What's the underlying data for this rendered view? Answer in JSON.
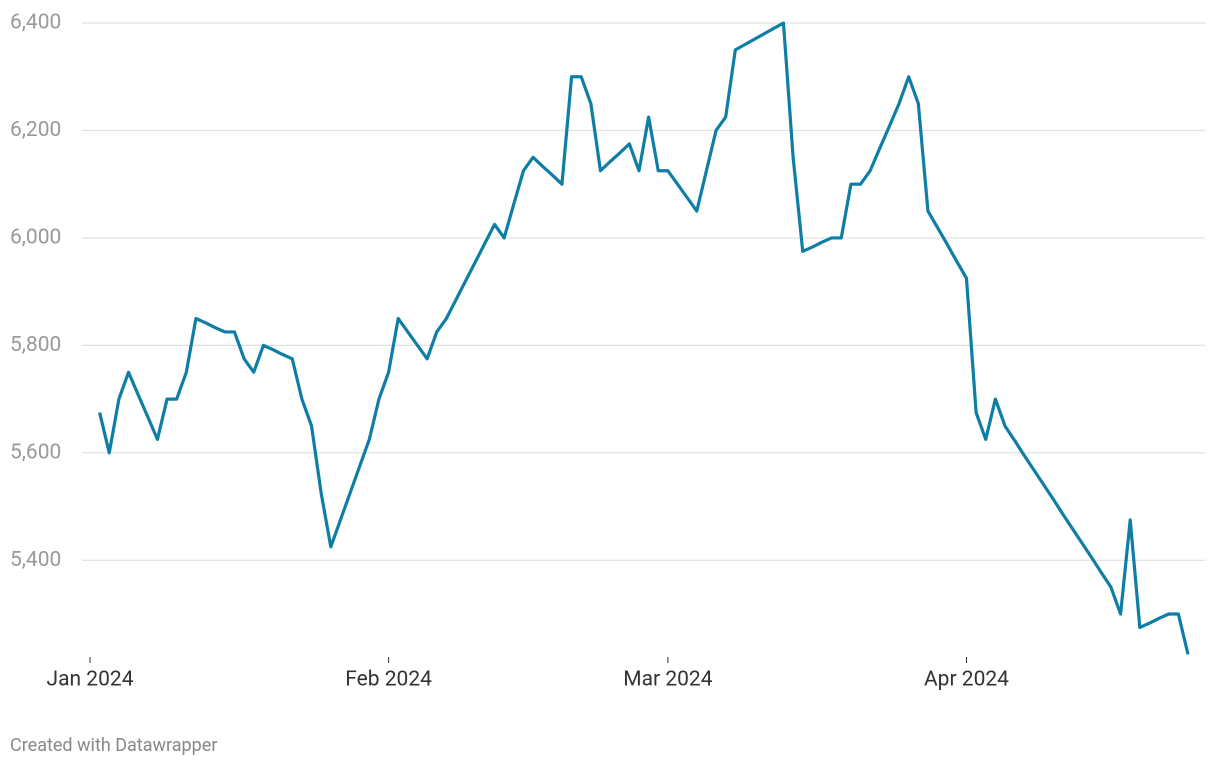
{
  "chart_data": {
    "type": "line",
    "categories": [
      "Jan 2024",
      null,
      null,
      null,
      null,
      null,
      null,
      null,
      null,
      null,
      null,
      null,
      null,
      null,
      null,
      null,
      null,
      null,
      null,
      null,
      null,
      null,
      null,
      null,
      null,
      null,
      null,
      null,
      null,
      null,
      null,
      "Feb 2024",
      null,
      null,
      null,
      null,
      null,
      null,
      null,
      null,
      null,
      null,
      null,
      null,
      null,
      null,
      null,
      null,
      null,
      null,
      null,
      null,
      null,
      null,
      null,
      null,
      null,
      null,
      null,
      null,
      "Mar 2024",
      null,
      null,
      null,
      null,
      null,
      null,
      null,
      null,
      null,
      null,
      null,
      null,
      null,
      null,
      null,
      null,
      null,
      null,
      null,
      null,
      null,
      null,
      null,
      null,
      null,
      null,
      null,
      null,
      null,
      null,
      "Apr 2024",
      null,
      null,
      null,
      null,
      null,
      null,
      null,
      null,
      null,
      null,
      null,
      null,
      null,
      null,
      null,
      null,
      null,
      null,
      null,
      null,
      null,
      null,
      null
    ],
    "series": [
      {
        "color": "#0f7ea6",
        "values": [
          null,
          5675,
          5600,
          5700,
          5750,
          5708,
          5667,
          5625,
          5700,
          5700,
          5750,
          5850,
          5842,
          5833,
          5825,
          5825,
          5775,
          5750,
          5800,
          5792,
          5783,
          5775,
          5700,
          5650,
          5525,
          5425,
          5475,
          5525,
          5575,
          5625,
          5700,
          5750,
          5850,
          5825,
          5800,
          5775,
          5825,
          5850,
          5885,
          5920,
          5955,
          5990,
          6025,
          6000,
          6063,
          6125,
          6150,
          6133,
          6117,
          6100,
          6300,
          6300,
          6250,
          6125,
          6142,
          6158,
          6175,
          6125,
          6225,
          6125,
          6125,
          6100,
          6075,
          6050,
          6125,
          6200,
          6225,
          6350,
          6360,
          6370,
          6380,
          6390,
          6400,
          6150,
          5975,
          5983,
          5992,
          6000,
          6000,
          6100,
          6100,
          6125,
          6167,
          6208,
          6250,
          6300,
          6250,
          6050,
          6019,
          5988,
          5956,
          5925,
          5675,
          5625,
          5700,
          5650,
          5623,
          5595,
          5568,
          5541,
          5514,
          5486,
          5459,
          5432,
          5405,
          5377,
          5350,
          5300,
          5475,
          5275,
          5283,
          5292,
          5300,
          5300,
          5225
        ]
      }
    ],
    "ylim": [
      5220,
      6400
    ],
    "yticks": [
      {
        "value": 5400,
        "label": "5,400"
      },
      {
        "value": 5600,
        "label": "5,600"
      },
      {
        "value": 5800,
        "label": "5,800"
      },
      {
        "value": 6000,
        "label": "6,000"
      },
      {
        "value": 6200,
        "label": "6,200"
      },
      {
        "value": 6400,
        "label": "6,400"
      }
    ],
    "grid": true,
    "footer": "Created with Datawrapper"
  }
}
